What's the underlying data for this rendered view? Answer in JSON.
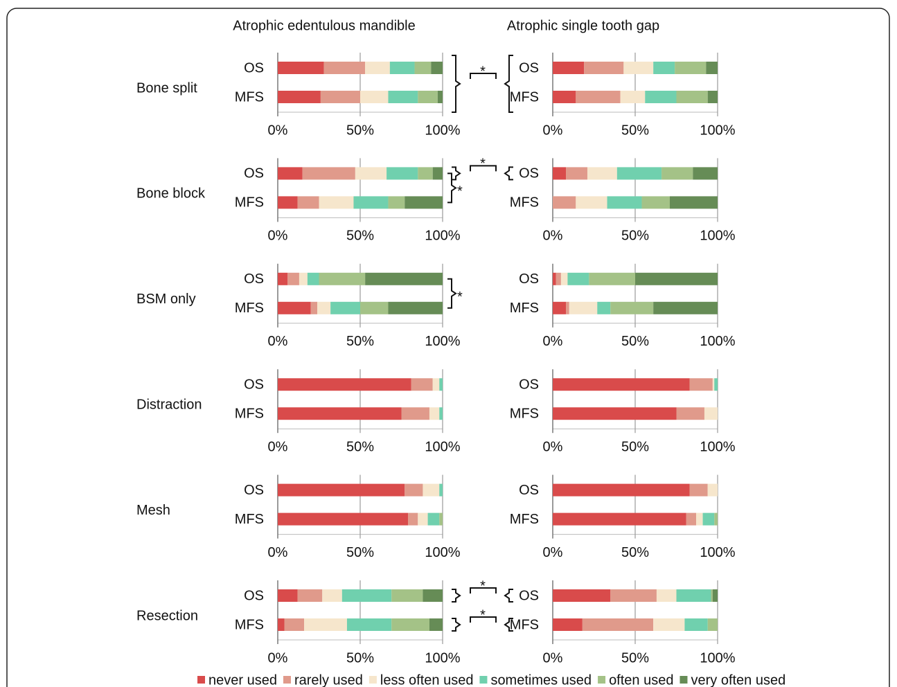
{
  "chart_data": {
    "type": "bar",
    "orientation": "horizontal",
    "stacked": true,
    "columns": [
      "Atrophic edentulous mandible",
      "Atrophic single tooth gap"
    ],
    "rows": [
      "Bone split",
      "Bone block",
      "BSM only",
      "Distraction",
      "Mesh",
      "Resection"
    ],
    "categories": [
      "OS",
      "MFS"
    ],
    "series": [
      {
        "name": "never used",
        "color": "#d94b4b"
      },
      {
        "name": "rarely used",
        "color": "#e09a8b"
      },
      {
        "name": "less often used",
        "color": "#f6e6cc"
      },
      {
        "name": "sometimes used",
        "color": "#70d0ae"
      },
      {
        "name": "often used",
        "color": "#a4c287"
      },
      {
        "name": "very often used",
        "color": "#668c56"
      }
    ],
    "xlim": [
      0,
      100
    ],
    "xticks": [
      {
        "value": 0,
        "label": "0%"
      },
      {
        "value": 50,
        "label": "50%"
      },
      {
        "value": 100,
        "label": "100%"
      }
    ],
    "panels": [
      [
        {
          "values": [
            [
              28,
              25,
              15,
              15,
              10,
              7
            ],
            [
              26,
              24,
              17,
              18,
              12,
              3
            ]
          ]
        },
        {
          "values": [
            [
              19,
              24,
              18,
              13,
              19,
              7
            ],
            [
              14,
              27,
              15,
              19,
              19,
              6
            ]
          ]
        }
      ],
      [
        {
          "values": [
            [
              15,
              32,
              19,
              19,
              9,
              6
            ],
            [
              12,
              13,
              21,
              21,
              10,
              23
            ]
          ]
        },
        {
          "values": [
            [
              8,
              13,
              18,
              27,
              19,
              15
            ],
            [
              0,
              14,
              19,
              21,
              17,
              29
            ]
          ]
        }
      ],
      [
        {
          "values": [
            [
              6,
              7,
              5,
              7,
              28,
              47
            ],
            [
              20,
              4,
              8,
              18,
              17,
              33
            ]
          ]
        },
        {
          "values": [
            [
              2,
              3,
              4,
              13,
              28,
              50
            ],
            [
              8,
              2,
              17,
              8,
              26,
              39
            ]
          ]
        }
      ],
      [
        {
          "values": [
            [
              81,
              13,
              4,
              2,
              0,
              0
            ],
            [
              75,
              17,
              6,
              2,
              0,
              0
            ]
          ]
        },
        {
          "values": [
            [
              83,
              14,
              1,
              2,
              0,
              0
            ],
            [
              75,
              17,
              8,
              0,
              0,
              0
            ]
          ]
        }
      ],
      [
        {
          "values": [
            [
              77,
              11,
              10,
              2,
              0,
              0
            ],
            [
              79,
              6,
              6,
              7,
              2,
              0
            ]
          ]
        },
        {
          "values": [
            [
              83,
              11,
              6,
              0,
              0,
              0
            ],
            [
              81,
              6,
              4,
              7,
              2,
              0
            ]
          ]
        }
      ],
      [
        {
          "values": [
            [
              12,
              15,
              12,
              30,
              19,
              12
            ],
            [
              4,
              12,
              26,
              27,
              23,
              8
            ]
          ]
        },
        {
          "values": [
            [
              35,
              28,
              12,
              21,
              1,
              3
            ],
            [
              18,
              43,
              19,
              14,
              6,
              0
            ]
          ]
        }
      ]
    ],
    "annotations": [
      {
        "text": "*",
        "row": 0,
        "link": "columns"
      },
      {
        "text": "*",
        "row": 1,
        "link": "OS"
      },
      {
        "text": "*",
        "row": 1,
        "link": "bars"
      },
      {
        "text": "*",
        "row": 2,
        "link": "bars"
      },
      {
        "text": "*",
        "row": 5,
        "link": "OS"
      },
      {
        "text": "*",
        "row": 5,
        "link": "MFS"
      }
    ]
  }
}
